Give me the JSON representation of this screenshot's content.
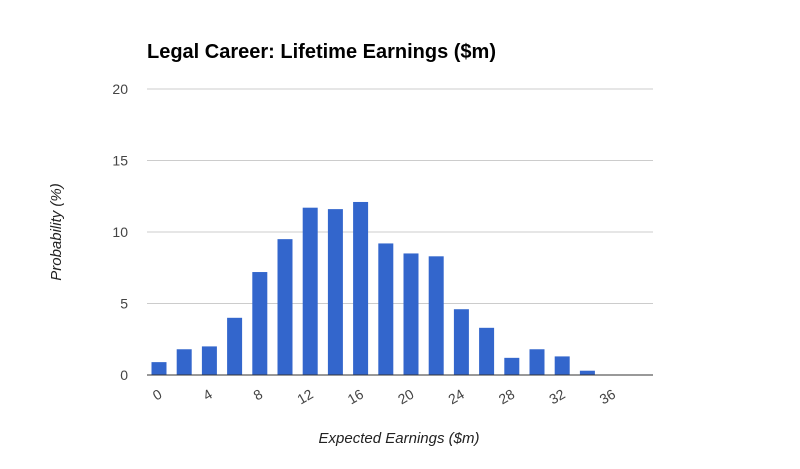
{
  "chart_data": {
    "type": "bar",
    "title": "Legal Career: Lifetime Earnings ($m)",
    "xlabel": "Expected Earnings ($m)",
    "ylabel": "Probability (%)",
    "x": [
      0,
      2,
      4,
      6,
      8,
      10,
      12,
      14,
      16,
      18,
      20,
      22,
      24,
      26,
      28,
      30,
      32,
      34,
      36
    ],
    "values": [
      0.9,
      1.8,
      2.0,
      4.0,
      7.2,
      9.5,
      11.7,
      11.6,
      12.1,
      9.2,
      8.5,
      8.3,
      4.6,
      3.3,
      1.2,
      1.8,
      1.3,
      0.3,
      0
    ],
    "x_tick_labels": [
      "0",
      "4",
      "8",
      "12",
      "16",
      "20",
      "24",
      "28",
      "32",
      "36"
    ],
    "y_tick_labels": [
      "0",
      "5",
      "10",
      "15",
      "20"
    ],
    "ylim": [
      0,
      20
    ],
    "grid": true,
    "legend": "none",
    "colors": {
      "bar": "#3366cc",
      "grid": "#cccccc",
      "baseline": "#333333"
    }
  }
}
